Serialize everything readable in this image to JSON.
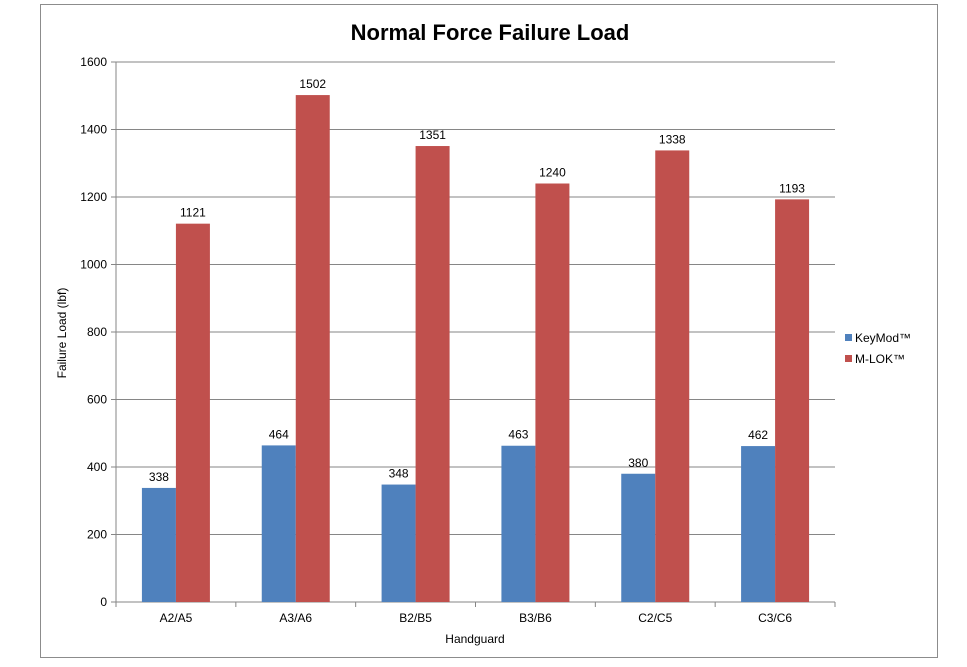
{
  "chart_data": {
    "type": "bar",
    "title": "Normal Force Failure Load",
    "xlabel": "Handguard",
    "ylabel": "Failure Load (lbf)",
    "categories": [
      "A2/A5",
      "A3/A6",
      "B2/B5",
      "B3/B6",
      "C2/C5",
      "C3/C6"
    ],
    "series": [
      {
        "name": "KeyMod™",
        "color": "#4f81bd",
        "values": [
          338,
          464,
          348,
          463,
          380,
          462
        ]
      },
      {
        "name": "M-LOK™",
        "color": "#c0504d",
        "values": [
          1121,
          1502,
          1351,
          1240,
          1338,
          1193
        ]
      }
    ],
    "ylim": [
      0,
      1600
    ],
    "yticks": [
      0,
      200,
      400,
      600,
      800,
      1000,
      1200,
      1400,
      1600
    ],
    "grid": true,
    "legend_position": "right"
  }
}
